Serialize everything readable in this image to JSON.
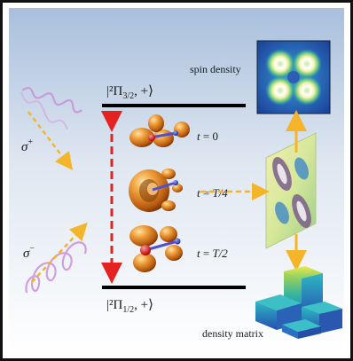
{
  "levels": {
    "upper": {
      "ket": "|²Π",
      "sub": "3/2",
      "tail": ", +⟩"
    },
    "lower": {
      "ket": "|²Π",
      "sub": "1/2",
      "tail": ", +⟩"
    }
  },
  "polarization": {
    "sigma_plus": {
      "symbol": "σ",
      "sign": "+"
    },
    "sigma_minus": {
      "symbol": "σ",
      "sign": "−"
    }
  },
  "times": {
    "t0": {
      "var": "t",
      "eq": " = ",
      "val": "0"
    },
    "t1": {
      "var": "t",
      "eq": " = ",
      "val": "T/4"
    },
    "t2": {
      "var": "t",
      "eq": " = ",
      "val": "T/2"
    }
  },
  "panels": {
    "spin_density": "spin density",
    "density_matrix": "density matrix"
  },
  "colors": {
    "level_line": "#000000",
    "transition_arrow": "#e52222",
    "feed_arrow": "#f5b52a",
    "beam": "#c991d8",
    "orbital": "#d9791c",
    "frame": "#111111"
  }
}
